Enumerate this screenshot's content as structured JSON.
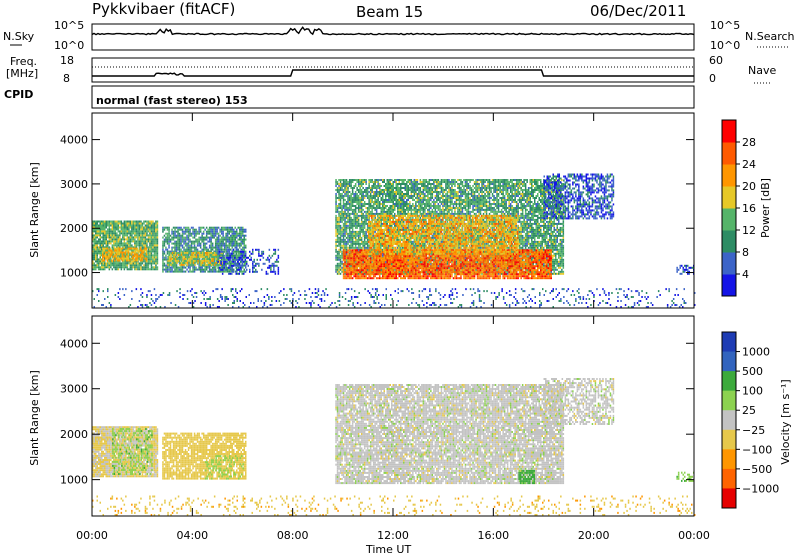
{
  "header": {
    "station": "Pykkvibaer (fitACF)",
    "beam": "Beam 15",
    "date": "06/Dec/2011"
  },
  "noise_panel": {
    "left_label": "N.Sky",
    "left_ticks": [
      "10^5",
      "10^0"
    ],
    "right_ticks": [
      "10^5",
      "10^0"
    ],
    "right_label": "N.Search"
  },
  "freq_panel": {
    "left_label_1": "Freq.",
    "left_label_2": "[MHz]",
    "left_ticks": [
      "18",
      "8"
    ],
    "right_ticks": [
      "60",
      "0"
    ],
    "right_label": "Nave"
  },
  "cpid": {
    "label": "CPID",
    "value": "normal (fast stereo) 153"
  },
  "colors": {
    "power_scale": [
      "#1414e6",
      "#3c64c8",
      "#2d8c64",
      "#55b469",
      "#e6c828",
      "#ff9600",
      "#ff5a00",
      "#ff0000"
    ],
    "velocity_scale": [
      "#e60000",
      "#ff6400",
      "#ff9600",
      "#e6c84b",
      "#c3c3c3",
      "#8cd250",
      "#3caa3c",
      "#2d8c64",
      "#3264be",
      "#1e3cb4"
    ]
  },
  "chart_data": [
    {
      "type": "heatmap",
      "name": "power",
      "ylabel": "Slant Range [km]",
      "xlabel": "",
      "x_ticks": [
        "00:00",
        "04:00",
        "08:00",
        "12:00",
        "16:00",
        "20:00",
        "00:00"
      ],
      "x_hours": [
        0,
        4,
        8,
        12,
        16,
        20,
        24
      ],
      "y_ticks": [
        1000,
        2000,
        3000,
        4000
      ],
      "ylim": [
        200,
        4600
      ],
      "xlim": [
        0,
        24
      ],
      "colorbar": {
        "label": "Power [dB]",
        "ticks": [
          4,
          8,
          12,
          16,
          20,
          24,
          28
        ],
        "range": [
          0,
          32
        ]
      },
      "regions": [
        {
          "t": [
            0.0,
            2.6
          ],
          "r": [
            1050,
            2150
          ],
          "v": 13,
          "density": 0.9
        },
        {
          "t": [
            0.4,
            2.2
          ],
          "r": [
            1250,
            1550
          ],
          "v": 19,
          "density": 0.8
        },
        {
          "t": [
            2.8,
            6.1
          ],
          "r": [
            1000,
            2000
          ],
          "v": 10,
          "density": 0.8
        },
        {
          "t": [
            3.0,
            5.2
          ],
          "r": [
            1150,
            1450
          ],
          "v": 17,
          "density": 0.85
        },
        {
          "t": [
            5.0,
            7.4
          ],
          "r": [
            950,
            1500
          ],
          "v": 5,
          "density": 0.35
        },
        {
          "t": [
            9.7,
            18.8
          ],
          "r": [
            950,
            3100
          ],
          "v": 12,
          "density": 0.8
        },
        {
          "t": [
            10.0,
            18.3
          ],
          "r": [
            850,
            1500
          ],
          "v": 25,
          "density": 0.9
        },
        {
          "t": [
            11.0,
            17.0
          ],
          "r": [
            1400,
            2300
          ],
          "v": 20,
          "density": 0.75
        },
        {
          "t": [
            18.0,
            20.8
          ],
          "r": [
            2200,
            3200
          ],
          "v": 6,
          "density": 0.6
        },
        {
          "t": [
            0.0,
            24.0
          ],
          "r": [
            200,
            650
          ],
          "v": 6,
          "density": 0.15
        },
        {
          "t": [
            23.3,
            24.0
          ],
          "r": [
            950,
            1150
          ],
          "v": 5,
          "density": 0.5
        }
      ]
    },
    {
      "type": "heatmap",
      "name": "velocity",
      "ylabel": "Slant Range [km]",
      "xlabel": "Time UT",
      "x_ticks": [
        "00:00",
        "04:00",
        "08:00",
        "12:00",
        "16:00",
        "20:00",
        "00:00"
      ],
      "x_hours": [
        0,
        4,
        8,
        12,
        16,
        20,
        24
      ],
      "y_ticks": [
        1000,
        2000,
        3000,
        4000
      ],
      "ylim": [
        200,
        4600
      ],
      "xlim": [
        0,
        24
      ],
      "colorbar": {
        "label": "Velocity [m s⁻¹]",
        "ticks": [
          "1000",
          "500",
          "100",
          "25",
          "−25",
          "−100",
          "−500",
          "−1000"
        ],
        "range": [
          -1250,
          1250
        ]
      },
      "regions": [
        {
          "t": [
            0.0,
            2.6
          ],
          "r": [
            1050,
            2150
          ],
          "v": -30,
          "density": 0.95
        },
        {
          "t": [
            0.8,
            2.4
          ],
          "r": [
            1100,
            2100
          ],
          "v": 80,
          "density": 0.4
        },
        {
          "t": [
            2.8,
            6.1
          ],
          "r": [
            1000,
            2000
          ],
          "v": -60,
          "density": 0.8
        },
        {
          "t": [
            4.5,
            6.0
          ],
          "r": [
            1000,
            1500
          ],
          "v": 60,
          "density": 0.3
        },
        {
          "t": [
            9.7,
            18.8
          ],
          "r": [
            900,
            3100
          ],
          "v": 0,
          "density": 0.85
        },
        {
          "t": [
            17.0,
            17.6
          ],
          "r": [
            900,
            1200
          ],
          "v": 120,
          "density": 0.8
        },
        {
          "t": [
            18.0,
            20.8
          ],
          "r": [
            2200,
            3200
          ],
          "v": 0,
          "density": 0.6
        },
        {
          "t": [
            0.0,
            24.0
          ],
          "r": [
            200,
            650
          ],
          "v": -80,
          "density": 0.12
        },
        {
          "t": [
            23.3,
            24.0
          ],
          "r": [
            950,
            1150
          ],
          "v": 80,
          "density": 0.5
        }
      ]
    }
  ]
}
